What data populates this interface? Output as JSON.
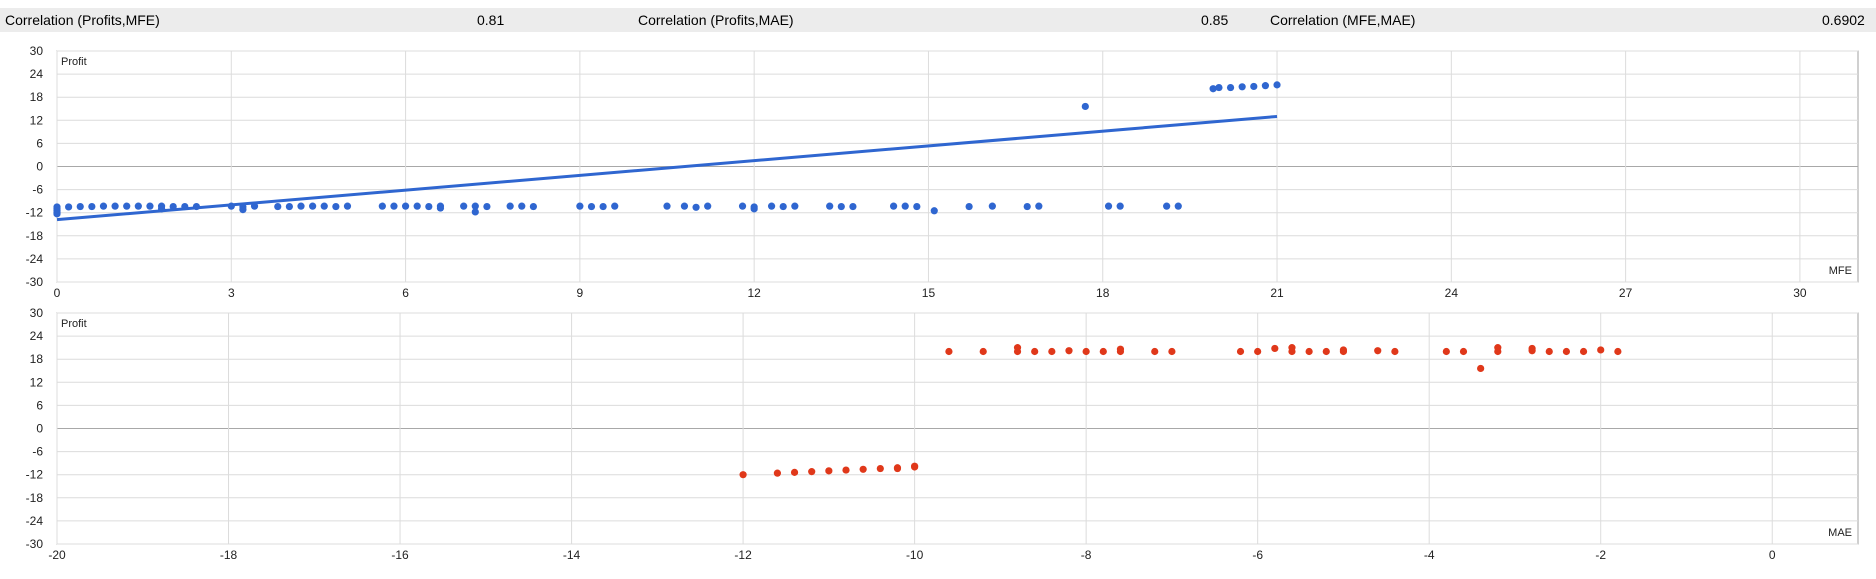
{
  "stats": {
    "corr_mfe_label": "Correlation (Profits,MFE)",
    "corr_mfe_value": "0.81",
    "corr_mae_label": "Correlation (Profits,MAE)",
    "corr_mae_value": "0.85",
    "corr_mfe_mae_label": "Correlation (MFE,MAE)",
    "corr_mfe_mae_value": "0.6902"
  },
  "colors": {
    "mfe_points": "#2f66d0",
    "mae_points": "#e0381a",
    "trend_line": "#2f66d0"
  },
  "chart_data": [
    {
      "type": "scatter",
      "ylabel": "Profit",
      "xlabel": "MFE",
      "xlim": [
        0,
        31
      ],
      "ylim": [
        -30,
        30
      ],
      "x_ticks": [
        "0",
        "3",
        "6",
        "9",
        "12",
        "15",
        "18",
        "21",
        "24",
        "27",
        "30"
      ],
      "y_ticks": [
        "30",
        "24",
        "18",
        "12",
        "6",
        "0",
        "-6",
        "-12",
        "-18",
        "-24",
        "-30"
      ],
      "grid": true,
      "trendline": {
        "x": [
          0,
          21
        ],
        "y": [
          -13.8,
          13
        ]
      },
      "points": [
        [
          0,
          -10.5
        ],
        [
          0,
          -11
        ],
        [
          0,
          -11.5
        ],
        [
          0,
          -12
        ],
        [
          0,
          -12.3
        ],
        [
          0.2,
          -10.5
        ],
        [
          0.4,
          -10.4
        ],
        [
          0.6,
          -10.4
        ],
        [
          0.8,
          -10.3
        ],
        [
          1.0,
          -10.3
        ],
        [
          1.2,
          -10.3
        ],
        [
          1.4,
          -10.3
        ],
        [
          1.6,
          -10.3
        ],
        [
          1.8,
          -10.3
        ],
        [
          1.8,
          -11
        ],
        [
          2.0,
          -10.4
        ],
        [
          2.2,
          -10.4
        ],
        [
          2.4,
          -10.4
        ],
        [
          3.0,
          -10.3
        ],
        [
          3.2,
          -10.5
        ],
        [
          3.2,
          -11.2
        ],
        [
          3.4,
          -10.3
        ],
        [
          3.8,
          -10.4
        ],
        [
          4.0,
          -10.4
        ],
        [
          4.2,
          -10.3
        ],
        [
          4.4,
          -10.3
        ],
        [
          4.6,
          -10.3
        ],
        [
          4.8,
          -10.4
        ],
        [
          5.0,
          -10.3
        ],
        [
          5.6,
          -10.3
        ],
        [
          5.8,
          -10.3
        ],
        [
          6.0,
          -10.3
        ],
        [
          6.2,
          -10.3
        ],
        [
          6.4,
          -10.4
        ],
        [
          6.6,
          -10.3
        ],
        [
          6.6,
          -10.8
        ],
        [
          7.0,
          -10.3
        ],
        [
          7.2,
          -10.3
        ],
        [
          7.2,
          -11.8
        ],
        [
          7.4,
          -10.4
        ],
        [
          7.8,
          -10.3
        ],
        [
          8.0,
          -10.3
        ],
        [
          8.2,
          -10.4
        ],
        [
          9.0,
          -10.3
        ],
        [
          9.2,
          -10.4
        ],
        [
          9.4,
          -10.4
        ],
        [
          9.6,
          -10.3
        ],
        [
          10.5,
          -10.3
        ],
        [
          10.8,
          -10.3
        ],
        [
          11.0,
          -10.6
        ],
        [
          11.2,
          -10.3
        ],
        [
          11.8,
          -10.3
        ],
        [
          12.0,
          -10.5
        ],
        [
          12.0,
          -11
        ],
        [
          12.3,
          -10.3
        ],
        [
          12.5,
          -10.4
        ],
        [
          12.7,
          -10.3
        ],
        [
          13.3,
          -10.3
        ],
        [
          13.5,
          -10.4
        ],
        [
          13.7,
          -10.4
        ],
        [
          14.4,
          -10.3
        ],
        [
          14.6,
          -10.3
        ],
        [
          14.8,
          -10.4
        ],
        [
          15.1,
          -11.5
        ],
        [
          15.7,
          -10.4
        ],
        [
          16.1,
          -10.3
        ],
        [
          16.7,
          -10.4
        ],
        [
          16.9,
          -10.3
        ],
        [
          17.7,
          15.6
        ],
        [
          18.1,
          -10.3
        ],
        [
          18.3,
          -10.3
        ],
        [
          19.1,
          -10.3
        ],
        [
          19.3,
          -10.3
        ],
        [
          19.9,
          20.2
        ],
        [
          20.0,
          20.5
        ],
        [
          20.2,
          20.5
        ],
        [
          20.4,
          20.7
        ],
        [
          20.6,
          20.8
        ],
        [
          20.8,
          21
        ],
        [
          21.0,
          21.2
        ]
      ]
    },
    {
      "type": "scatter",
      "ylabel": "Profit",
      "xlabel": "MAE",
      "xlim": [
        -20,
        1
      ],
      "ylim": [
        -30,
        30
      ],
      "x_ticks": [
        "-20",
        "-18",
        "-16",
        "-14",
        "-12",
        "-10",
        "-8",
        "-6",
        "-4",
        "-2",
        "0"
      ],
      "y_ticks": [
        "30",
        "24",
        "18",
        "12",
        "6",
        "0",
        "-6",
        "-12",
        "-18",
        "-24",
        "-30"
      ],
      "grid": true,
      "points": [
        [
          -12,
          -12
        ],
        [
          -11.6,
          -11.6
        ],
        [
          -11.4,
          -11.4
        ],
        [
          -11.2,
          -11.2
        ],
        [
          -11.0,
          -11
        ],
        [
          -10.8,
          -10.8
        ],
        [
          -10.6,
          -10.6
        ],
        [
          -10.4,
          -10.4
        ],
        [
          -10.2,
          -10.2
        ],
        [
          -10.2,
          -10.4
        ],
        [
          -10.0,
          -10
        ],
        [
          -10.0,
          -9.8
        ],
        [
          -9.6,
          20
        ],
        [
          -9.2,
          20
        ],
        [
          -8.8,
          20
        ],
        [
          -8.8,
          21
        ],
        [
          -8.6,
          20
        ],
        [
          -8.4,
          20
        ],
        [
          -8.2,
          20.2
        ],
        [
          -8.0,
          20
        ],
        [
          -7.8,
          20
        ],
        [
          -7.6,
          20
        ],
        [
          -7.6,
          20.6
        ],
        [
          -7.2,
          20
        ],
        [
          -7.0,
          20
        ],
        [
          -6.2,
          20
        ],
        [
          -6.0,
          20
        ],
        [
          -5.8,
          20.8
        ],
        [
          -5.6,
          20
        ],
        [
          -5.6,
          21
        ],
        [
          -5.4,
          20
        ],
        [
          -5.2,
          20
        ],
        [
          -5.0,
          20
        ],
        [
          -5.0,
          20.4
        ],
        [
          -4.6,
          20.2
        ],
        [
          -4.4,
          20
        ],
        [
          -3.8,
          20
        ],
        [
          -3.6,
          20
        ],
        [
          -3.4,
          15.6
        ],
        [
          -3.2,
          20
        ],
        [
          -3.2,
          21
        ],
        [
          -2.8,
          20.2
        ],
        [
          -2.8,
          20.8
        ],
        [
          -2.6,
          20
        ],
        [
          -2.4,
          20
        ],
        [
          -2.2,
          20
        ],
        [
          -2.0,
          20.4
        ],
        [
          -1.8,
          20
        ]
      ]
    }
  ]
}
